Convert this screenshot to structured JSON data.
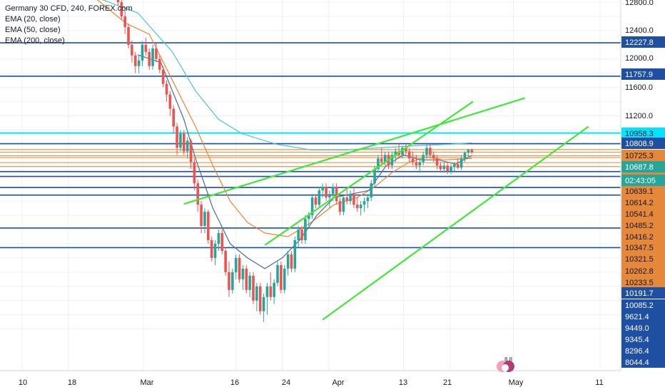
{
  "chart_data": {
    "type": "candlestick",
    "title": "Germany 30 CFD, 240, FOREX.com",
    "indicators": [
      "EMA (20, close)",
      "EMA (50, close)",
      "EMA (200, close)"
    ],
    "x_tick_labels": [
      "10",
      "18",
      "Mar",
      "16",
      "24",
      "Apr",
      "13",
      "21",
      "May",
      "11"
    ],
    "y_tick_labels": [
      "12800.0",
      "12400.0",
      "12000.0",
      "11600.0",
      "11200.0"
    ],
    "ylim": [
      8000,
      12850
    ],
    "grid": true,
    "legend_position": "top-left",
    "colors": {
      "up": "#26a69a",
      "down": "#ef5350",
      "ema20": "#4a6c91",
      "ema50": "#f0822a",
      "ema200": "#4dc6cf",
      "level_blue": "#1e4fa3",
      "level_orange": "#e8944a",
      "level_cyan": "#00e5ff",
      "trendline": "#3ee835",
      "price_scale_bg": "#ffffff",
      "badge_orange": "#e6883a"
    },
    "price_badges": [
      {
        "label": "12800.0",
        "style": "axis"
      },
      {
        "label": "12400.0",
        "style": "axis"
      },
      {
        "label": "12227.8",
        "style": "blue"
      },
      {
        "label": "12000.0",
        "style": "axis"
      },
      {
        "label": "11757.9",
        "style": "blue"
      },
      {
        "label": "11600.0",
        "style": "axis"
      },
      {
        "label": "11200.0",
        "style": "axis"
      },
      {
        "label": "10958.3",
        "style": "cyan"
      },
      {
        "label": "10808.9",
        "style": "blue"
      },
      {
        "label": "10725.3",
        "style": "orange"
      },
      {
        "label": "10687.8",
        "style": "teal"
      },
      {
        "label": "02:43:05",
        "style": "teal"
      },
      {
        "label": "10639.1",
        "style": "orange"
      },
      {
        "label": "10614.2",
        "style": "orange"
      },
      {
        "label": "10541.4",
        "style": "orange"
      },
      {
        "label": "10485.2",
        "style": "orange"
      },
      {
        "label": "10416.2",
        "style": "orange"
      },
      {
        "label": "10347.5",
        "style": "orange"
      },
      {
        "label": "10321.5",
        "style": "orange"
      },
      {
        "label": "10262.8",
        "style": "orange"
      },
      {
        "label": "10233.5",
        "style": "orange"
      },
      {
        "label": "10191.7",
        "style": "blue"
      },
      {
        "label": "10085.2",
        "style": "blue"
      },
      {
        "label": "9621.4",
        "style": "blue"
      },
      {
        "label": "9449.0",
        "style": "blue"
      },
      {
        "label": "9345.4",
        "style": "blue"
      },
      {
        "label": "8296.4",
        "style": "blue"
      },
      {
        "label": "8044.4",
        "style": "blue"
      }
    ],
    "horizontal_levels": [
      {
        "price": 12227.8,
        "color": "blue"
      },
      {
        "price": 11757.9,
        "color": "blue"
      },
      {
        "price": 10958.3,
        "color": "cyan"
      },
      {
        "price": 10808.9,
        "color": "blue"
      },
      {
        "price": 10725.3,
        "color": "orange"
      },
      {
        "price": 10687.8,
        "color": "orange"
      },
      {
        "price": 10639.1,
        "color": "orange"
      },
      {
        "price": 10614.2,
        "color": "orange"
      },
      {
        "price": 10541.4,
        "color": "orange"
      },
      {
        "price": 10485.2,
        "color": "orange"
      },
      {
        "price": 10416.2,
        "color": "blue"
      },
      {
        "price": 10347.5,
        "color": "blue"
      },
      {
        "price": 10191.7,
        "color": "blue"
      },
      {
        "price": 10085.2,
        "color": "blue"
      },
      {
        "price": 9621.4,
        "color": "blue"
      },
      {
        "price": 9345.4,
        "color": "blue"
      }
    ],
    "trendlines": [
      {
        "t1": 52,
        "p1": 9380,
        "t2": 88,
        "p2": 11400
      },
      {
        "t1": 62,
        "p1": 8330,
        "t2": 108,
        "p2": 11050
      },
      {
        "t1": 38,
        "p1": 9960,
        "t2": 97,
        "p2": 11450
      }
    ],
    "candles": [
      {
        "t": 26.6,
        "o": 12900,
        "h": 12960,
        "l": 12750,
        "c": 12800
      },
      {
        "t": 27.2,
        "o": 12800,
        "h": 12850,
        "l": 12550,
        "c": 12600
      },
      {
        "t": 27.8,
        "o": 12600,
        "h": 12700,
        "l": 12350,
        "c": 12450
      },
      {
        "t": 28.4,
        "o": 12450,
        "h": 12500,
        "l": 12150,
        "c": 12200
      },
      {
        "t": 29.0,
        "o": 12200,
        "h": 12260,
        "l": 11950,
        "c": 12050
      },
      {
        "t": 29.6,
        "o": 12050,
        "h": 12100,
        "l": 11800,
        "c": 11900
      },
      {
        "t": 30.2,
        "o": 11900,
        "h": 12050,
        "l": 11800,
        "c": 11980
      },
      {
        "t": 30.8,
        "o": 11980,
        "h": 12250,
        "l": 11900,
        "c": 12200
      },
      {
        "t": 31.4,
        "o": 12200,
        "h": 12300,
        "l": 12050,
        "c": 12100
      },
      {
        "t": 32.0,
        "o": 12100,
        "h": 12150,
        "l": 11850,
        "c": 11900
      },
      {
        "t": 32.6,
        "o": 11900,
        "h": 12200,
        "l": 11850,
        "c": 12150
      },
      {
        "t": 33.2,
        "o": 12150,
        "h": 12220,
        "l": 11950,
        "c": 12000
      },
      {
        "t": 33.8,
        "o": 12000,
        "h": 12050,
        "l": 11800,
        "c": 11850
      },
      {
        "t": 34.4,
        "o": 11850,
        "h": 11900,
        "l": 11600,
        "c": 11650
      },
      {
        "t": 35.0,
        "o": 11650,
        "h": 11700,
        "l": 11400,
        "c": 11500
      },
      {
        "t": 35.6,
        "o": 11500,
        "h": 11550,
        "l": 11200,
        "c": 11300
      },
      {
        "t": 36.2,
        "o": 11300,
        "h": 11350,
        "l": 10950,
        "c": 11050
      },
      {
        "t": 36.8,
        "o": 11050,
        "h": 11100,
        "l": 10650,
        "c": 10750
      },
      {
        "t": 37.4,
        "o": 10750,
        "h": 11000,
        "l": 10700,
        "c": 10950
      },
      {
        "t": 38.0,
        "o": 10950,
        "h": 11000,
        "l": 10650,
        "c": 10700
      },
      {
        "t": 38.6,
        "o": 10700,
        "h": 10900,
        "l": 10600,
        "c": 10850
      },
      {
        "t": 39.2,
        "o": 10850,
        "h": 10880,
        "l": 10450,
        "c": 10550
      },
      {
        "t": 39.8,
        "o": 10550,
        "h": 10600,
        "l": 10150,
        "c": 10250
      },
      {
        "t": 40.4,
        "o": 10250,
        "h": 10300,
        "l": 9850,
        "c": 9950
      },
      {
        "t": 41.0,
        "o": 9950,
        "h": 10000,
        "l": 9550,
        "c": 9650
      },
      {
        "t": 41.6,
        "o": 9650,
        "h": 9900,
        "l": 9550,
        "c": 9850
      },
      {
        "t": 42.2,
        "o": 9850,
        "h": 9880,
        "l": 9400,
        "c": 9450
      },
      {
        "t": 42.8,
        "o": 9450,
        "h": 9500,
        "l": 9150,
        "c": 9200
      },
      {
        "t": 43.4,
        "o": 9200,
        "h": 9450,
        "l": 9100,
        "c": 9400
      },
      {
        "t": 44.0,
        "o": 9400,
        "h": 9600,
        "l": 9300,
        "c": 9550
      },
      {
        "t": 44.6,
        "o": 9550,
        "h": 9600,
        "l": 9250,
        "c": 9300
      },
      {
        "t": 45.2,
        "o": 9300,
        "h": 9350,
        "l": 8950,
        "c": 9000
      },
      {
        "t": 45.8,
        "o": 9000,
        "h": 9150,
        "l": 8650,
        "c": 8750
      },
      {
        "t": 46.4,
        "o": 8750,
        "h": 9050,
        "l": 8700,
        "c": 9000
      },
      {
        "t": 47.0,
        "o": 9000,
        "h": 9250,
        "l": 8900,
        "c": 9200
      },
      {
        "t": 47.6,
        "o": 9200,
        "h": 9250,
        "l": 8850,
        "c": 8900
      },
      {
        "t": 48.2,
        "o": 8900,
        "h": 9100,
        "l": 8750,
        "c": 9050
      },
      {
        "t": 48.8,
        "o": 9050,
        "h": 9100,
        "l": 8700,
        "c": 8750
      },
      {
        "t": 49.4,
        "o": 8750,
        "h": 9000,
        "l": 8650,
        "c": 8950
      },
      {
        "t": 50.0,
        "o": 8950,
        "h": 9000,
        "l": 8550,
        "c": 8600
      },
      {
        "t": 50.6,
        "o": 8600,
        "h": 8850,
        "l": 8450,
        "c": 8800
      },
      {
        "t": 51.2,
        "o": 8800,
        "h": 8850,
        "l": 8400,
        "c": 8450
      },
      {
        "t": 51.8,
        "o": 8450,
        "h": 8700,
        "l": 8300,
        "c": 8650
      },
      {
        "t": 52.4,
        "o": 8650,
        "h": 8850,
        "l": 8400,
        "c": 8800
      },
      {
        "t": 53.0,
        "o": 8800,
        "h": 9000,
        "l": 8600,
        "c": 8650
      },
      {
        "t": 53.6,
        "o": 8650,
        "h": 8900,
        "l": 8550,
        "c": 8850
      },
      {
        "t": 54.2,
        "o": 8850,
        "h": 9150,
        "l": 8800,
        "c": 9100
      },
      {
        "t": 54.8,
        "o": 9100,
        "h": 9150,
        "l": 8700,
        "c": 8750
      },
      {
        "t": 55.4,
        "o": 8750,
        "h": 9100,
        "l": 8700,
        "c": 9050
      },
      {
        "t": 56.0,
        "o": 9050,
        "h": 9300,
        "l": 8950,
        "c": 9250
      },
      {
        "t": 56.6,
        "o": 9250,
        "h": 9300,
        "l": 9000,
        "c": 9050
      },
      {
        "t": 57.2,
        "o": 9050,
        "h": 9500,
        "l": 9000,
        "c": 9450
      },
      {
        "t": 57.8,
        "o": 9450,
        "h": 9650,
        "l": 9350,
        "c": 9600
      },
      {
        "t": 58.4,
        "o": 9600,
        "h": 9650,
        "l": 9400,
        "c": 9450
      },
      {
        "t": 59.0,
        "o": 9450,
        "h": 9800,
        "l": 9400,
        "c": 9750
      },
      {
        "t": 59.6,
        "o": 9750,
        "h": 9850,
        "l": 9650,
        "c": 9800
      },
      {
        "t": 60.2,
        "o": 9800,
        "h": 10100,
        "l": 9750,
        "c": 10050
      },
      {
        "t": 60.8,
        "o": 10050,
        "h": 10100,
        "l": 9900,
        "c": 9950
      },
      {
        "t": 61.4,
        "o": 9950,
        "h": 10200,
        "l": 9900,
        "c": 10150
      },
      {
        "t": 62.0,
        "o": 10150,
        "h": 10250,
        "l": 10050,
        "c": 10200
      },
      {
        "t": 62.6,
        "o": 10200,
        "h": 10250,
        "l": 10000,
        "c": 10050
      },
      {
        "t": 63.2,
        "o": 10050,
        "h": 10150,
        "l": 9900,
        "c": 10100
      },
      {
        "t": 63.8,
        "o": 10100,
        "h": 10250,
        "l": 10000,
        "c": 10200
      },
      {
        "t": 64.4,
        "o": 10200,
        "h": 10250,
        "l": 9950,
        "c": 10000
      },
      {
        "t": 65.0,
        "o": 10000,
        "h": 10050,
        "l": 9800,
        "c": 9850
      },
      {
        "t": 65.6,
        "o": 9850,
        "h": 10100,
        "l": 9800,
        "c": 10050
      },
      {
        "t": 66.2,
        "o": 10050,
        "h": 10200,
        "l": 9950,
        "c": 10000
      },
      {
        "t": 66.8,
        "o": 10000,
        "h": 10150,
        "l": 9950,
        "c": 10100
      },
      {
        "t": 67.4,
        "o": 10100,
        "h": 10200,
        "l": 9900,
        "c": 9950
      },
      {
        "t": 68.0,
        "o": 9950,
        "h": 10050,
        "l": 9850,
        "c": 9900
      },
      {
        "t": 68.6,
        "o": 9900,
        "h": 10000,
        "l": 9800,
        "c": 9950
      },
      {
        "t": 69.2,
        "o": 9950,
        "h": 10050,
        "l": 9850,
        "c": 10000
      },
      {
        "t": 69.8,
        "o": 10000,
        "h": 10100,
        "l": 9900,
        "c": 10050
      },
      {
        "t": 70.4,
        "o": 10050,
        "h": 10300,
        "l": 10000,
        "c": 10250
      },
      {
        "t": 71.0,
        "o": 10250,
        "h": 10500,
        "l": 10200,
        "c": 10450
      },
      {
        "t": 71.6,
        "o": 10450,
        "h": 10650,
        "l": 10400,
        "c": 10600
      },
      {
        "t": 72.2,
        "o": 10600,
        "h": 10750,
        "l": 10500,
        "c": 10550
      },
      {
        "t": 72.8,
        "o": 10550,
        "h": 10700,
        "l": 10500,
        "c": 10650
      },
      {
        "t": 73.4,
        "o": 10650,
        "h": 10700,
        "l": 10450,
        "c": 10500
      },
      {
        "t": 74.0,
        "o": 10500,
        "h": 10700,
        "l": 10450,
        "c": 10650
      },
      {
        "t": 74.6,
        "o": 10650,
        "h": 10750,
        "l": 10550,
        "c": 10700
      },
      {
        "t": 75.2,
        "o": 10700,
        "h": 10800,
        "l": 10600,
        "c": 10650
      },
      {
        "t": 75.8,
        "o": 10650,
        "h": 10780,
        "l": 10600,
        "c": 10750
      },
      {
        "t": 76.4,
        "o": 10750,
        "h": 10800,
        "l": 10650,
        "c": 10700
      },
      {
        "t": 77.0,
        "o": 10700,
        "h": 10750,
        "l": 10550,
        "c": 10600
      },
      {
        "t": 77.6,
        "o": 10600,
        "h": 10700,
        "l": 10500,
        "c": 10550
      },
      {
        "t": 78.2,
        "o": 10550,
        "h": 10650,
        "l": 10450,
        "c": 10500
      },
      {
        "t": 78.8,
        "o": 10500,
        "h": 10600,
        "l": 10400,
        "c": 10550
      },
      {
        "t": 79.4,
        "o": 10550,
        "h": 10700,
        "l": 10500,
        "c": 10650
      },
      {
        "t": 80.0,
        "o": 10650,
        "h": 10800,
        "l": 10600,
        "c": 10750
      },
      {
        "t": 80.6,
        "o": 10750,
        "h": 10800,
        "l": 10600,
        "c": 10650
      },
      {
        "t": 81.2,
        "o": 10650,
        "h": 10700,
        "l": 10550,
        "c": 10600
      },
      {
        "t": 81.8,
        "o": 10600,
        "h": 10650,
        "l": 10450,
        "c": 10500
      },
      {
        "t": 82.4,
        "o": 10500,
        "h": 10550,
        "l": 10400,
        "c": 10450
      },
      {
        "t": 83.0,
        "o": 10450,
        "h": 10550,
        "l": 10400,
        "c": 10500
      },
      {
        "t": 83.6,
        "o": 10500,
        "h": 10550,
        "l": 10380,
        "c": 10420
      },
      {
        "t": 84.2,
        "o": 10420,
        "h": 10520,
        "l": 10380,
        "c": 10480
      },
      {
        "t": 84.8,
        "o": 10480,
        "h": 10550,
        "l": 10420,
        "c": 10520
      },
      {
        "t": 85.4,
        "o": 10520,
        "h": 10600,
        "l": 10450,
        "c": 10470
      },
      {
        "t": 86.0,
        "o": 10470,
        "h": 10650,
        "l": 10440,
        "c": 10600
      },
      {
        "t": 86.6,
        "o": 10600,
        "h": 10700,
        "l": 10550,
        "c": 10680
      },
      {
        "t": 87.2,
        "o": 10680,
        "h": 10740,
        "l": 10620,
        "c": 10720
      },
      {
        "t": 87.8,
        "o": 10720,
        "h": 10740,
        "l": 10660,
        "c": 10688
      }
    ],
    "ema20": [
      [
        30,
        12060
      ],
      [
        34,
        11950
      ],
      [
        38,
        11150
      ],
      [
        40,
        10600
      ],
      [
        43,
        9900
      ],
      [
        46,
        9400
      ],
      [
        49,
        9200
      ],
      [
        52,
        9050
      ],
      [
        55,
        9200
      ],
      [
        58,
        9450
      ],
      [
        61,
        9800
      ],
      [
        64,
        10050
      ],
      [
        67,
        10100
      ],
      [
        70,
        10150
      ],
      [
        73,
        10500
      ],
      [
        76,
        10650
      ],
      [
        79,
        10580
      ],
      [
        82,
        10580
      ],
      [
        85,
        10520
      ],
      [
        87.8,
        10640
      ]
    ],
    "ema50": [
      [
        22,
        12900
      ],
      [
        28,
        12500
      ],
      [
        32,
        12350
      ],
      [
        36,
        11700
      ],
      [
        40,
        11050
      ],
      [
        43,
        10500
      ],
      [
        46,
        10000
      ],
      [
        49,
        9700
      ],
      [
        52,
        9550
      ],
      [
        56,
        9500
      ],
      [
        60,
        9700
      ],
      [
        64,
        9950
      ],
      [
        68,
        10050
      ],
      [
        71,
        10200
      ],
      [
        74,
        10400
      ],
      [
        77,
        10550
      ],
      [
        80,
        10620
      ],
      [
        83,
        10580
      ],
      [
        87.8,
        10600
      ]
    ],
    "ema200": [
      [
        20,
        12950
      ],
      [
        30,
        12650
      ],
      [
        36,
        12100
      ],
      [
        40,
        11550
      ],
      [
        44,
        11150
      ],
      [
        48,
        10950
      ],
      [
        54,
        10800
      ],
      [
        60,
        10720
      ],
      [
        66,
        10720
      ],
      [
        72,
        10750
      ],
      [
        78,
        10780
      ],
      [
        84,
        10800
      ],
      [
        87.8,
        10820
      ]
    ]
  }
}
